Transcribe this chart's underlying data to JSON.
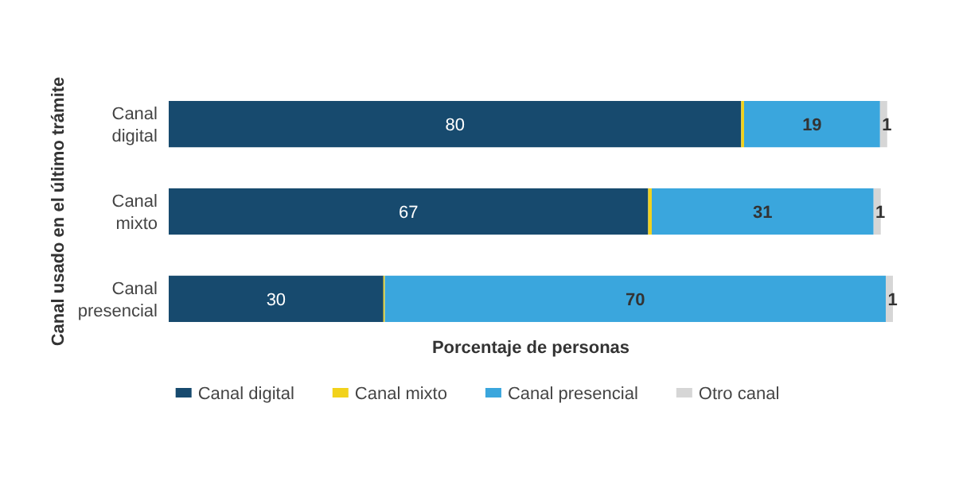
{
  "chart_data": {
    "type": "bar",
    "orientation": "horizontal",
    "stacked": true,
    "xlabel": "Porcentaje de personas",
    "ylabel": "Canal usado en el último trámite",
    "categories": [
      "Canal digital",
      "Canal mixto",
      "Canal presencial"
    ],
    "series": [
      {
        "name": "Canal digital",
        "color": "#174a6e",
        "values": [
          80,
          67,
          30
        ],
        "value_labels": [
          "80",
          "67",
          "30"
        ]
      },
      {
        "name": "Canal mixto",
        "color": "#f2d21b",
        "values": [
          0.4,
          0.5,
          0.2
        ],
        "value_labels": [
          null,
          null,
          null
        ]
      },
      {
        "name": "Canal presencial",
        "color": "#3aa6dd",
        "values": [
          19,
          31,
          70
        ],
        "value_labels": [
          "19",
          "31",
          "70"
        ]
      },
      {
        "name": "Otro canal",
        "color": "#d6d6d6",
        "values": [
          1,
          1,
          1
        ],
        "value_labels": [
          "1",
          "1",
          "1"
        ]
      }
    ],
    "legend": "bottom"
  }
}
